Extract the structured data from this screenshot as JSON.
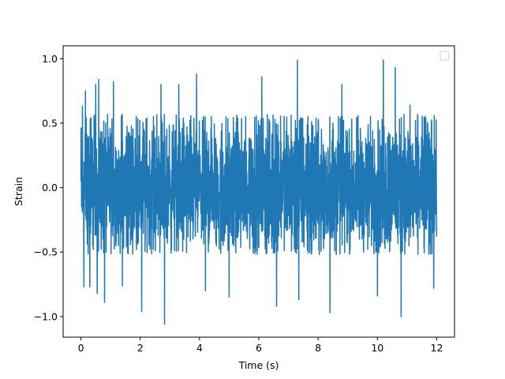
{
  "chart_data": {
    "type": "line",
    "title": "",
    "xlabel": "Time (s)",
    "ylabel": "Strain",
    "xlim": [
      -0.6,
      12.6
    ],
    "ylim": [
      -1.16,
      1.1
    ],
    "xticks": [
      0,
      2,
      4,
      6,
      8,
      10,
      12
    ],
    "xtick_labels": [
      "0",
      "2",
      "4",
      "6",
      "8",
      "10",
      "12"
    ],
    "yticks": [
      -1.0,
      -0.5,
      0.0,
      0.5,
      1.0
    ],
    "ytick_labels": [
      "−1.0",
      "−0.5",
      "0.0",
      "0.5",
      "1.0"
    ],
    "grid": false,
    "legend": {
      "placement": "upper right",
      "entries": []
    },
    "series": [
      {
        "color": "#1f77b4",
        "x_start": 0,
        "x_end": 12,
        "envelope_typical": [
          -0.52,
          0.57
        ],
        "peaks": [
          {
            "x": 0.05,
            "y": 0.63
          },
          {
            "x": 0.1,
            "y": -0.77
          },
          {
            "x": 0.15,
            "y": 0.75
          },
          {
            "x": 0.3,
            "y": -0.77
          },
          {
            "x": 0.5,
            "y": 0.8
          },
          {
            "x": 0.55,
            "y": -0.82
          },
          {
            "x": 0.6,
            "y": 0.84
          },
          {
            "x": 0.8,
            "y": -0.89
          },
          {
            "x": 1.1,
            "y": 0.82
          },
          {
            "x": 1.4,
            "y": -0.76
          },
          {
            "x": 2.05,
            "y": 0.96
          },
          {
            "x": 2.05,
            "y": -0.96
          },
          {
            "x": 2.7,
            "y": 0.8
          },
          {
            "x": 2.82,
            "y": -1.06
          },
          {
            "x": 3.3,
            "y": 0.8
          },
          {
            "x": 3.9,
            "y": 0.88
          },
          {
            "x": 4.2,
            "y": 0.8
          },
          {
            "x": 4.2,
            "y": -0.8
          },
          {
            "x": 5.0,
            "y": 0.82
          },
          {
            "x": 5.0,
            "y": -0.85
          },
          {
            "x": 6.1,
            "y": 0.86
          },
          {
            "x": 6.6,
            "y": -0.92
          },
          {
            "x": 7.3,
            "y": 0.99
          },
          {
            "x": 7.35,
            "y": -0.87
          },
          {
            "x": 8.4,
            "y": -0.97
          },
          {
            "x": 8.8,
            "y": 0.8
          },
          {
            "x": 10.0,
            "y": -0.84
          },
          {
            "x": 10.2,
            "y": 0.99
          },
          {
            "x": 10.6,
            "y": 0.93
          },
          {
            "x": 10.8,
            "y": -1.0
          },
          {
            "x": 11.1,
            "y": 0.64
          },
          {
            "x": 11.9,
            "y": -0.78
          }
        ]
      }
    ]
  }
}
